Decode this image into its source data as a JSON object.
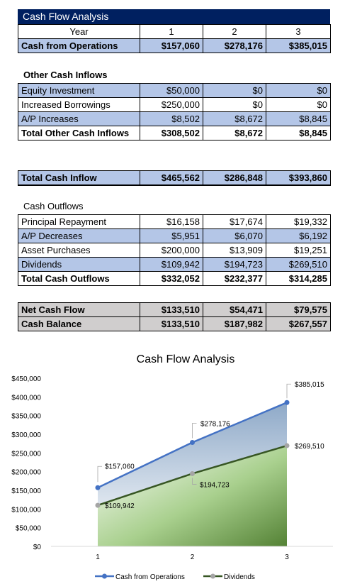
{
  "title": "Cash Flow Analysis",
  "header": {
    "label": "Year",
    "years": [
      "1",
      "2",
      "3"
    ]
  },
  "operations": {
    "label": "Cash from Operations",
    "values": [
      "$157,060",
      "$278,176",
      "$385,015"
    ]
  },
  "other_inflows": {
    "heading": "Other Cash Inflows",
    "rows": [
      {
        "label": "Equity Investment",
        "values": [
          "$50,000",
          "$0",
          "$0"
        ]
      },
      {
        "label": "Increased Borrowings",
        "values": [
          "$250,000",
          "$0",
          "$0"
        ]
      },
      {
        "label": "A/P Increases",
        "values": [
          "$8,502",
          "$8,672",
          "$8,845"
        ]
      }
    ],
    "total": {
      "label": "Total Other Cash Inflows",
      "values": [
        "$308,502",
        "$8,672",
        "$8,845"
      ]
    }
  },
  "total_inflow": {
    "label": "Total Cash Inflow",
    "values": [
      "$465,562",
      "$286,848",
      "$393,860"
    ]
  },
  "outflows": {
    "heading": "Cash Outflows",
    "rows": [
      {
        "label": "Principal Repayment",
        "values": [
          "$16,158",
          "$17,674",
          "$19,332"
        ]
      },
      {
        "label": "A/P Decreases",
        "values": [
          "$5,951",
          "$6,070",
          "$6,192"
        ]
      },
      {
        "label": "Asset Purchases",
        "values": [
          "$200,000",
          "$13,909",
          "$19,251"
        ]
      },
      {
        "label": "Dividends",
        "values": [
          "$109,942",
          "$194,723",
          "$269,510"
        ]
      }
    ],
    "total": {
      "label": "Total Cash Outflows",
      "values": [
        "$332,052",
        "$232,377",
        "$314,285"
      ]
    }
  },
  "net_cash_flow": {
    "label": "Net Cash Flow",
    "values": [
      "$133,510",
      "$54,471",
      "$79,575"
    ]
  },
  "cash_balance": {
    "label": "Cash Balance",
    "values": [
      "$133,510",
      "$187,982",
      "$267,557"
    ]
  },
  "colors": {
    "title_bg": "#002060",
    "row_blue": "#b4c6e7",
    "row_gray": "#d0cece",
    "ops_line": "#4472c4",
    "div_line": "#375623",
    "div_marker": "#a5a5a5"
  },
  "chart_data": {
    "type": "area",
    "title": "Cash Flow Analysis",
    "x": [
      1,
      2,
      3
    ],
    "ylim": [
      0,
      450000
    ],
    "yticks": [
      "$0",
      "$50,000",
      "$100,000",
      "$150,000",
      "$200,000",
      "$250,000",
      "$300,000",
      "$350,000",
      "$400,000",
      "$450,000"
    ],
    "grid": false,
    "legend": "bottom",
    "series": [
      {
        "name": "Cash from Operations",
        "values": [
          157060,
          278176,
          385015
        ],
        "labels": [
          "$157,060",
          "$278,176",
          "$385,015"
        ]
      },
      {
        "name": "Dividends",
        "values": [
          109942,
          194723,
          269510
        ],
        "labels": [
          "$109,942",
          "$194,723",
          "$269,510"
        ]
      }
    ]
  }
}
